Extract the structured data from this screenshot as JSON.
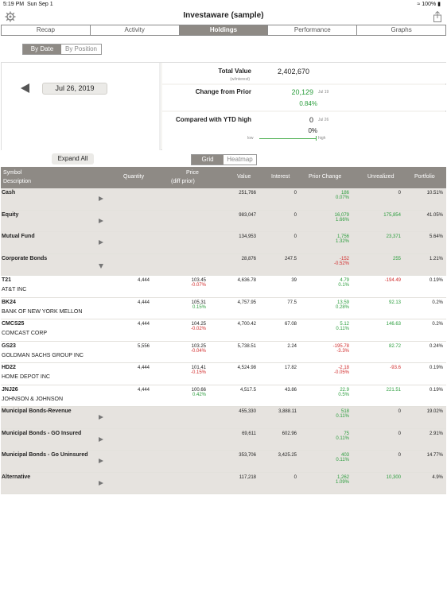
{
  "status": {
    "time": "5:19 PM",
    "date": "Sun Sep 1",
    "battery": "100%"
  },
  "app": {
    "title": "Investaware (sample)"
  },
  "tabs": [
    {
      "label": "Recap"
    },
    {
      "label": "Activity"
    },
    {
      "label": "Holdings"
    },
    {
      "label": "Performance"
    },
    {
      "label": "Graphs"
    }
  ],
  "sort": {
    "by_date": "By Date",
    "by_position": "By Position"
  },
  "date": {
    "value": "Jul 26, 2019"
  },
  "summary": {
    "total_value_label": "Total Value",
    "total_value_note": "(w/interest)",
    "total_value": "2,402,670",
    "change_label": "Change from Prior",
    "change_value": "20,129",
    "change_pct": "0.84%",
    "change_date": "Jul 19",
    "ytd_label": "Compared with YTD high",
    "ytd_value": "0",
    "ytd_pct": "0%",
    "ytd_date": "Jul 26",
    "low": "low",
    "high": "high"
  },
  "controls": {
    "expand_all": "Expand All",
    "grid": "Grid",
    "heatmap": "Heatmap"
  },
  "columns": {
    "symbol": "Symbol",
    "description": "Description",
    "quantity": "Quantity",
    "price": "Price",
    "price_sub": "(diff prior)",
    "value": "Value",
    "interest": "Interest",
    "prior_change": "Prior Change",
    "unrealized": "Unrealized",
    "portfolio": "Portfolio"
  },
  "rows": [
    {
      "name": "Cash",
      "desc": "",
      "qty": "",
      "price": "",
      "price_diff": "",
      "value": "251,766",
      "interest": "0",
      "pc": "186",
      "pc_pct": "0.07%",
      "unreal": "0",
      "port": "10.51%"
    },
    {
      "name": "Equity",
      "desc": "",
      "qty": "",
      "price": "",
      "price_diff": "",
      "value": "983,047",
      "interest": "0",
      "pc": "16,079",
      "pc_pct": "1.66%",
      "unreal": "175,854",
      "port": "41.05%"
    },
    {
      "name": "Mutual Fund",
      "desc": "",
      "qty": "",
      "price": "",
      "price_diff": "",
      "value": "134,953",
      "interest": "0",
      "pc": "1,756",
      "pc_pct": "1.32%",
      "unreal": "23,371",
      "port": "5.64%"
    },
    {
      "name": "Corporate Bonds",
      "desc": "",
      "qty": "",
      "price": "",
      "price_diff": "",
      "value": "28,876",
      "interest": "247.5",
      "pc": "-152",
      "pc_pct": "-0.52%",
      "unreal": "255",
      "port": "1.21%"
    },
    {
      "name": "T21",
      "desc": "AT&T INC",
      "qty": "4,444",
      "price": "103.45",
      "price_diff": "-0.07%",
      "value": "4,636.78",
      "interest": "39",
      "pc": "4.79",
      "pc_pct": "0.1%",
      "unreal": "-194.49",
      "port": "0.19%"
    },
    {
      "name": "BK24",
      "desc": "BANK OF NEW YORK MELLON",
      "qty": "4,444",
      "price": "105.31",
      "price_diff": "0.15%",
      "value": "4,757.95",
      "interest": "77.5",
      "pc": "13.59",
      "pc_pct": "0.28%",
      "unreal": "92.13",
      "port": "0.2%"
    },
    {
      "name": "CMCS25",
      "desc": "COMCAST CORP",
      "qty": "4,444",
      "price": "104.25",
      "price_diff": "-0.02%",
      "value": "4,700.42",
      "interest": "67.08",
      "pc": "5.12",
      "pc_pct": "0.11%",
      "unreal": "146.63",
      "port": "0.2%"
    },
    {
      "name": "GS23",
      "desc": "GOLDMAN SACHS GROUP INC",
      "qty": "5,556",
      "price": "103.25",
      "price_diff": "-0.04%",
      "value": "5,738.51",
      "interest": "2.24",
      "pc": "-195.78",
      "pc_pct": "-3.3%",
      "unreal": "82.72",
      "port": "0.24%"
    },
    {
      "name": "HD22",
      "desc": "HOME DEPOT INC",
      "qty": "4,444",
      "price": "101.41",
      "price_diff": "-0.15%",
      "value": "4,524.98",
      "interest": "17.82",
      "pc": "-2.18",
      "pc_pct": "-0.05%",
      "unreal": "-93.6",
      "port": "0.19%"
    },
    {
      "name": "JNJ26",
      "desc": "JOHNSON & JOHNSON",
      "qty": "4,444",
      "price": "100.66",
      "price_diff": "0.42%",
      "value": "4,517.5",
      "interest": "43.86",
      "pc": "22.9",
      "pc_pct": "0.5%",
      "unreal": "221.51",
      "port": "0.19%"
    },
    {
      "name": "Municipal Bonds-Revenue",
      "desc": "",
      "qty": "",
      "price": "",
      "price_diff": "",
      "value": "455,330",
      "interest": "3,888.11",
      "pc": "518",
      "pc_pct": "0.11%",
      "unreal": "0",
      "port": "19.02%"
    },
    {
      "name": "Municipal Bonds - GO Insured",
      "desc": "",
      "qty": "",
      "price": "",
      "price_diff": "",
      "value": "69,611",
      "interest": "602.96",
      "pc": "75",
      "pc_pct": "0.11%",
      "unreal": "0",
      "port": "2.91%"
    },
    {
      "name": "Municipal Bonds - Go Uninsured",
      "desc": "",
      "qty": "",
      "price": "",
      "price_diff": "",
      "value": "353,706",
      "interest": "3,425.25",
      "pc": "403",
      "pc_pct": "0.11%",
      "unreal": "0",
      "port": "14.77%"
    },
    {
      "name": "Alternative",
      "desc": "",
      "qty": "",
      "price": "",
      "price_diff": "",
      "value": "117,218",
      "interest": "0",
      "pc": "1,262",
      "pc_pct": "1.09%",
      "unreal": "10,300",
      "port": "4.9%"
    }
  ],
  "colors": {
    "accent": "#8e8a85",
    "positive": "#2a9d3c",
    "negative": "#d12b2b",
    "category_row": "#e6e3df"
  }
}
